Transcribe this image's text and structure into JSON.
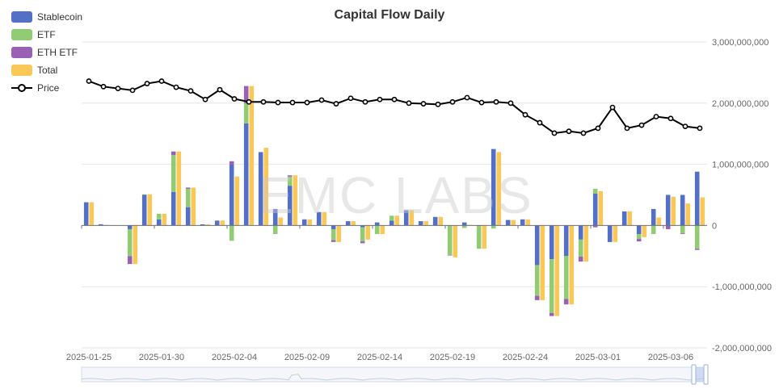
{
  "chart_data": {
    "type": "bar",
    "title": "Capital Flow Daily",
    "watermark": "EMC LABS",
    "legend": {
      "placement": "top-left",
      "items": [
        {
          "name": "Stablecoin",
          "color": "#5470c6",
          "kind": "bar"
        },
        {
          "name": "ETF",
          "color": "#91cc75",
          "kind": "bar"
        },
        {
          "name": "ETH ETF",
          "color": "#9a60b4",
          "kind": "bar"
        },
        {
          "name": "Total",
          "color": "#fac858",
          "kind": "bar"
        },
        {
          "name": "Price",
          "color": "#000000",
          "kind": "line"
        }
      ]
    },
    "xlabel": "",
    "ylabel": "",
    "x_tick_labels": [
      "2025-01-25",
      "2025-01-30",
      "2025-02-04",
      "2025-02-09",
      "2025-02-14",
      "2025-02-19",
      "2025-02-24",
      "2025-03-01",
      "2025-03-06"
    ],
    "y_ticks": [
      "3,000,000,000",
      "2,000,000,000",
      "1,000,000,000",
      "0",
      "-1,000,000,000",
      "-2,000,000,000"
    ],
    "ylim": [
      -2000000000,
      3000000000
    ],
    "grid": true,
    "categories": [
      "2025-01-25",
      "2025-01-26",
      "2025-01-27",
      "2025-01-28",
      "2025-01-29",
      "2025-01-30",
      "2025-01-31",
      "2025-02-01",
      "2025-02-02",
      "2025-02-03",
      "2025-02-04",
      "2025-02-05",
      "2025-02-06",
      "2025-02-07",
      "2025-02-08",
      "2025-02-09",
      "2025-02-10",
      "2025-02-11",
      "2025-02-12",
      "2025-02-13",
      "2025-02-14",
      "2025-02-15",
      "2025-02-16",
      "2025-02-17",
      "2025-02-18",
      "2025-02-19",
      "2025-02-20",
      "2025-02-21",
      "2025-02-22",
      "2025-02-23",
      "2025-02-24",
      "2025-02-25",
      "2025-02-26",
      "2025-02-27",
      "2025-02-28",
      "2025-03-01",
      "2025-03-02",
      "2025-03-03",
      "2025-03-04",
      "2025-03-05",
      "2025-03-06",
      "2025-03-07",
      "2025-03-08"
    ],
    "series": [
      {
        "name": "Stablecoin",
        "values": [
          380000000,
          20000000,
          0,
          -60000000,
          500000000,
          100000000,
          550000000,
          300000000,
          20000000,
          80000000,
          1000000000,
          1670000000,
          1200000000,
          270000000,
          650000000,
          100000000,
          220000000,
          -60000000,
          70000000,
          -30000000,
          50000000,
          80000000,
          250000000,
          70000000,
          140000000,
          0,
          50000000,
          -10000000,
          1250000000,
          90000000,
          100000000,
          -650000000,
          -550000000,
          -500000000,
          -230000000,
          520000000,
          -270000000,
          230000000,
          -140000000,
          270000000,
          500000000,
          500000000,
          880000000
        ]
      },
      {
        "name": "ETF",
        "values": [
          0,
          0,
          0,
          -440000000,
          10000000,
          90000000,
          600000000,
          300000000,
          0,
          0,
          -250000000,
          330000000,
          0,
          -140000000,
          150000000,
          0,
          0,
          -180000000,
          0,
          -230000000,
          -140000000,
          80000000,
          0,
          0,
          0,
          -480000000,
          -40000000,
          -370000000,
          -50000000,
          0,
          0,
          -500000000,
          -880000000,
          -700000000,
          -280000000,
          80000000,
          0,
          0,
          -80000000,
          -140000000,
          0,
          -130000000,
          -380000000
        ]
      },
      {
        "name": "ETH ETF",
        "values": [
          0,
          0,
          0,
          -130000000,
          0,
          0,
          60000000,
          20000000,
          0,
          0,
          50000000,
          280000000,
          0,
          0,
          20000000,
          0,
          0,
          -30000000,
          0,
          -30000000,
          0,
          0,
          0,
          0,
          0,
          -10000000,
          0,
          0,
          0,
          0,
          0,
          -70000000,
          -50000000,
          -90000000,
          -80000000,
          -30000000,
          0,
          0,
          -40000000,
          0,
          -60000000,
          -10000000,
          -20000000
        ]
      },
      {
        "name": "Total",
        "values": [
          380000000,
          10000000,
          0,
          -630000000,
          510000000,
          190000000,
          1210000000,
          620000000,
          20000000,
          80000000,
          800000000,
          2280000000,
          1270000000,
          130000000,
          820000000,
          100000000,
          220000000,
          -270000000,
          70000000,
          -230000000,
          -140000000,
          160000000,
          250000000,
          70000000,
          140000000,
          -520000000,
          10000000,
          -380000000,
          1200000000,
          90000000,
          100000000,
          -1220000000,
          -1480000000,
          -1290000000,
          -590000000,
          560000000,
          -270000000,
          230000000,
          -190000000,
          130000000,
          470000000,
          360000000,
          460000000
        ]
      },
      {
        "name": "Price",
        "values": [
          2360000000,
          2270000000,
          2240000000,
          2210000000,
          2320000000,
          2360000000,
          2260000000,
          2200000000,
          2060000000,
          2220000000,
          2070000000,
          2020000000,
          2020000000,
          2010000000,
          2010000000,
          2010000000,
          2050000000,
          1990000000,
          2080000000,
          2020000000,
          2060000000,
          2060000000,
          2000000000,
          1990000000,
          1980000000,
          2020000000,
          2090000000,
          2010000000,
          2020000000,
          2000000000,
          1810000000,
          1680000000,
          1510000000,
          1540000000,
          1510000000,
          1590000000,
          1930000000,
          1590000000,
          1640000000,
          1780000000,
          1750000000,
          1620000000,
          1590000000
        ]
      }
    ]
  }
}
